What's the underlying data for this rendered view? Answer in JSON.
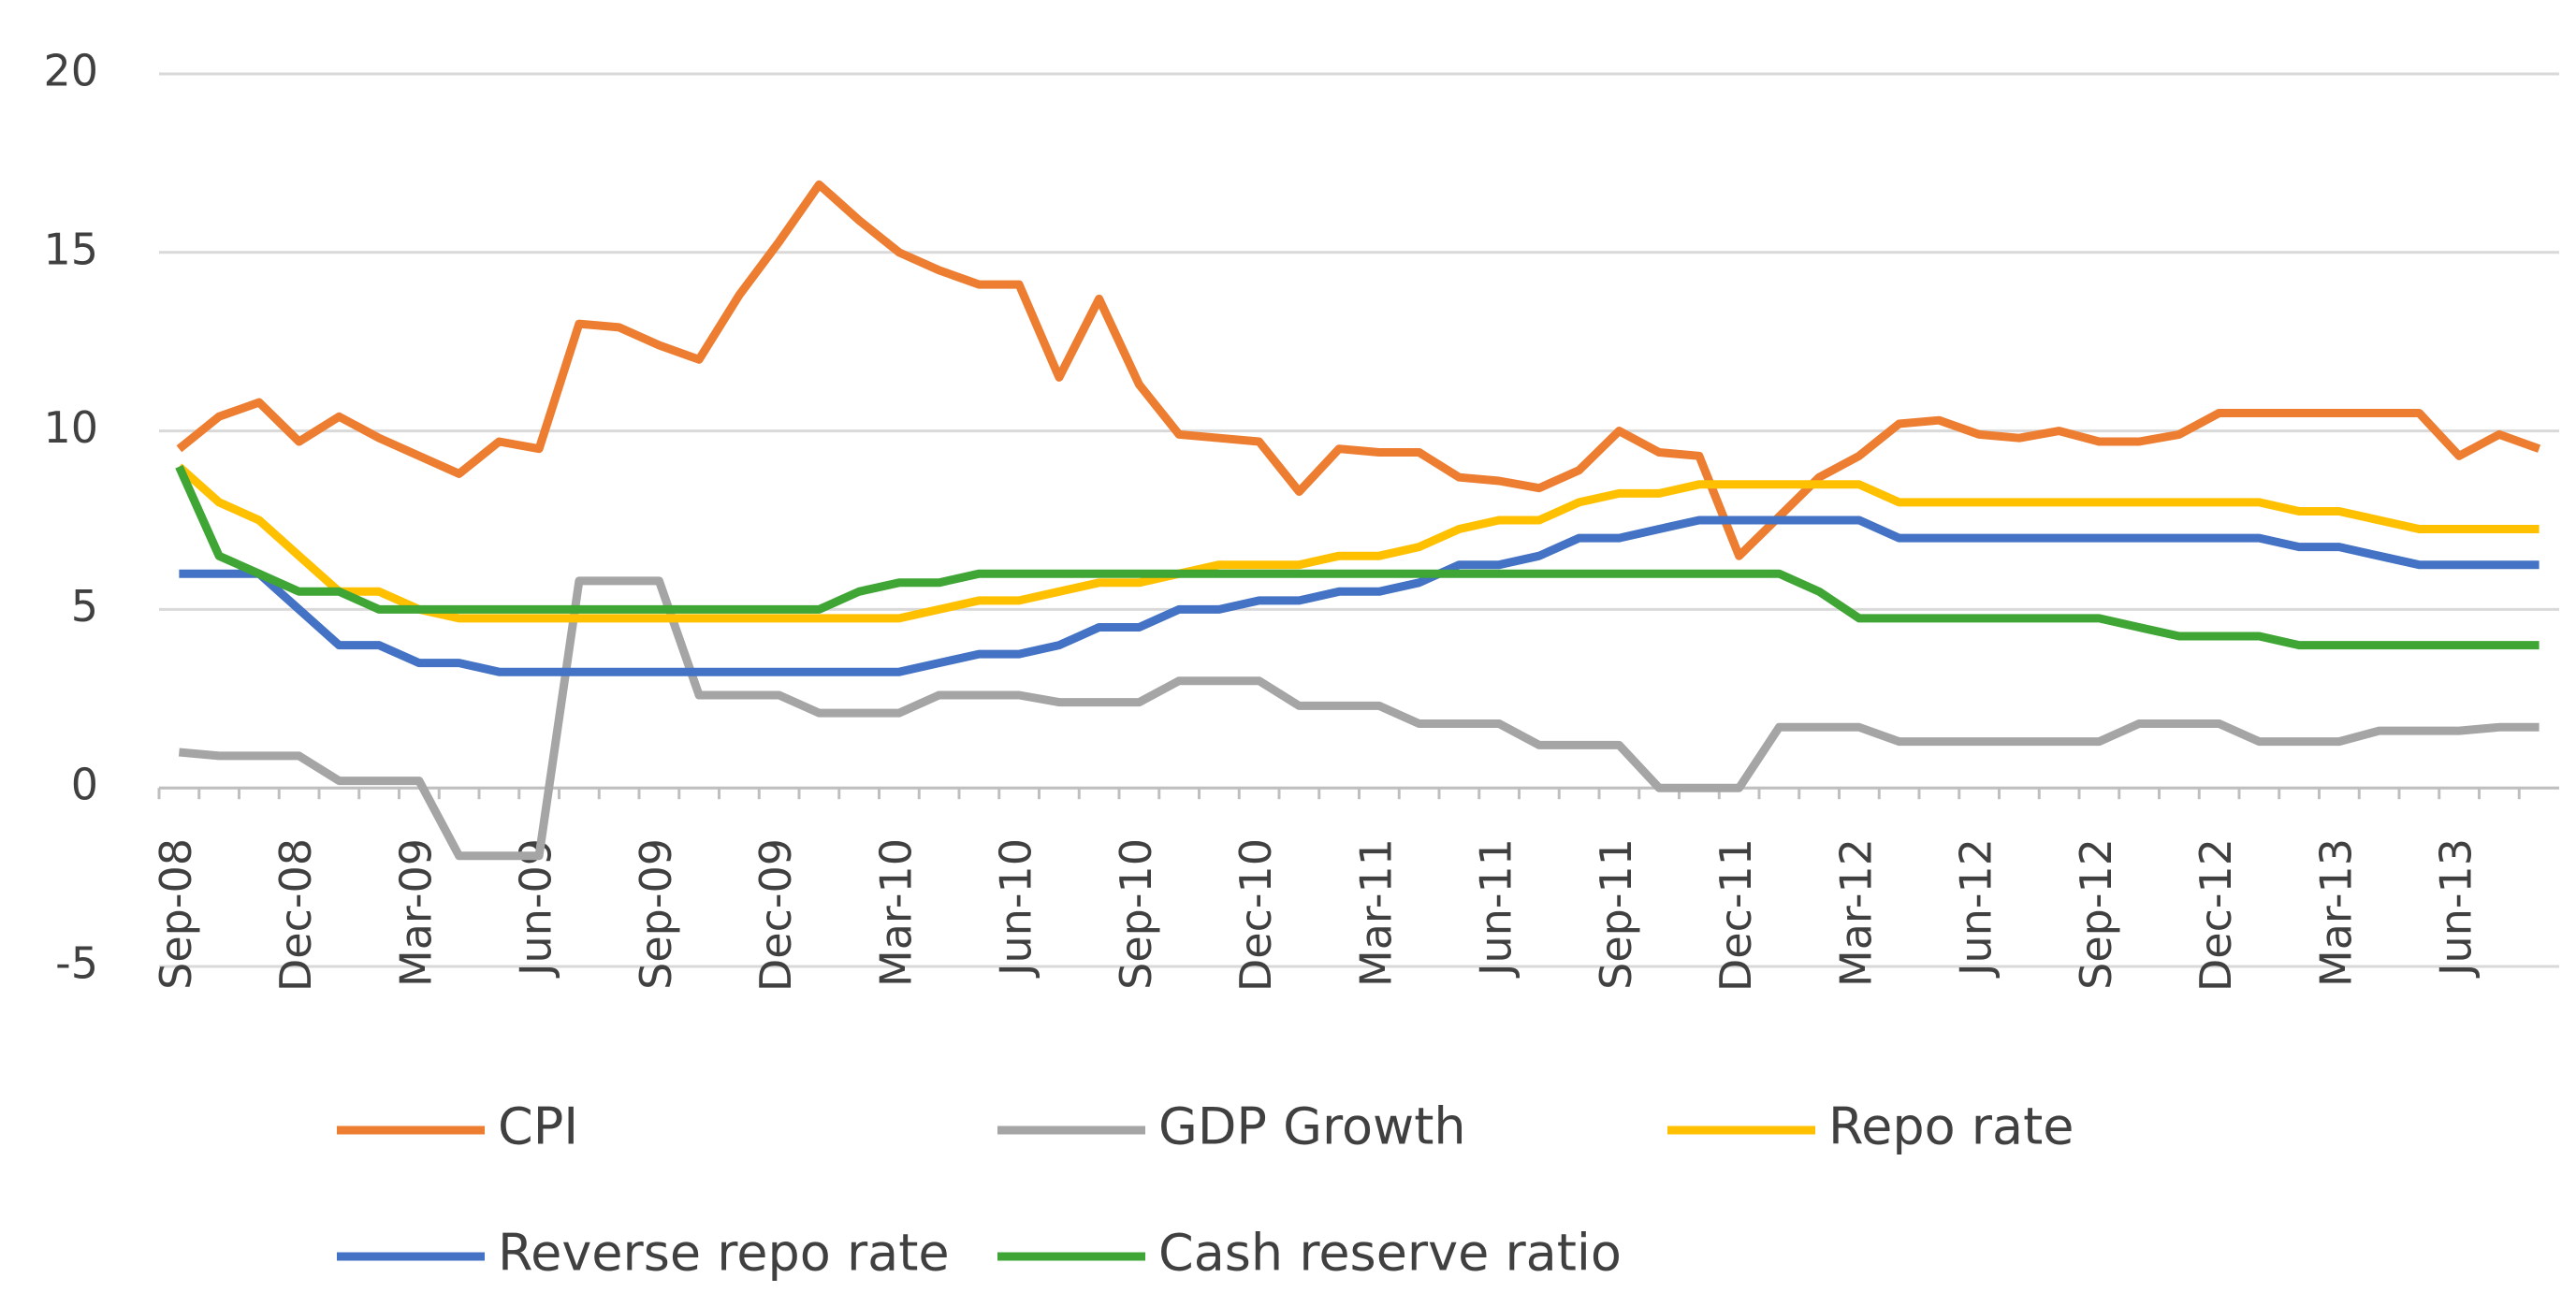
{
  "chart_data": {
    "type": "line",
    "categories": [
      "Sep-08",
      null,
      null,
      "Dec-08",
      null,
      null,
      "Mar-09",
      null,
      null,
      "Jun-09",
      null,
      null,
      "Sep-09",
      null,
      null,
      "Dec-09",
      null,
      null,
      "Mar-10",
      null,
      null,
      "Jun-10",
      null,
      null,
      "Sep-10",
      null,
      null,
      "Dec-10",
      null,
      null,
      "Mar-11",
      null,
      null,
      "Jun-11",
      null,
      null,
      "Sep-11",
      null,
      null,
      "Dec-11",
      null,
      null,
      "Mar-12",
      null,
      null,
      "Jun-12",
      null,
      null,
      "Sep-12",
      null,
      null,
      "Dec-12",
      null,
      null,
      "Mar-13",
      null,
      null,
      "Jun-13",
      null,
      null
    ],
    "series": [
      {
        "name": "CPI",
        "color": "#ed7d31",
        "values": [
          9.5,
          10.4,
          10.8,
          9.7,
          10.4,
          9.8,
          9.3,
          8.8,
          9.7,
          9.5,
          13.0,
          12.9,
          12.4,
          12.0,
          13.8,
          15.3,
          16.9,
          15.9,
          15.0,
          14.5,
          14.1,
          14.1,
          11.5,
          13.7,
          11.3,
          9.9,
          9.8,
          9.7,
          8.3,
          9.5,
          9.4,
          9.4,
          8.7,
          8.6,
          8.4,
          8.9,
          10.0,
          9.4,
          9.3,
          6.5,
          7.6,
          8.7,
          9.3,
          10.2,
          10.3,
          9.9,
          9.8,
          10.0,
          9.7,
          9.7,
          9.9,
          10.5,
          10.5,
          10.5,
          10.5,
          10.5,
          10.5,
          9.3,
          9.9,
          9.5
        ]
      },
      {
        "name": "GDP Growth",
        "color": "#a5a5a5",
        "values": [
          1.0,
          0.9,
          0.9,
          0.9,
          0.2,
          0.2,
          0.2,
          -1.9,
          -1.9,
          -1.9,
          5.8,
          5.8,
          5.8,
          2.6,
          2.6,
          2.6,
          2.1,
          2.1,
          2.1,
          2.6,
          2.6,
          2.6,
          2.4,
          2.4,
          2.4,
          3.0,
          3.0,
          3.0,
          2.3,
          2.3,
          2.3,
          1.8,
          1.8,
          1.8,
          1.2,
          1.2,
          1.2,
          0,
          0,
          0,
          1.7,
          1.7,
          1.7,
          1.3,
          1.3,
          1.3,
          1.3,
          1.3,
          1.3,
          1.8,
          1.8,
          1.8,
          1.3,
          1.3,
          1.3,
          1.6,
          1.6,
          1.6,
          1.7,
          1.7
        ]
      },
      {
        "name": "Repo rate",
        "color": "#ffc000",
        "values": [
          9.0,
          8.0,
          7.5,
          6.5,
          5.5,
          5.5,
          5.0,
          4.75,
          4.75,
          4.75,
          4.75,
          4.75,
          4.75,
          4.75,
          4.75,
          4.75,
          4.75,
          4.75,
          4.75,
          5.0,
          5.25,
          5.25,
          5.5,
          5.75,
          5.75,
          6.0,
          6.25,
          6.25,
          6.25,
          6.5,
          6.5,
          6.75,
          7.25,
          7.5,
          7.5,
          8.0,
          8.25,
          8.25,
          8.5,
          8.5,
          8.5,
          8.5,
          8.5,
          8.0,
          8.0,
          8.0,
          8.0,
          8.0,
          8.0,
          8.0,
          8.0,
          8.0,
          8.0,
          7.75,
          7.75,
          7.5,
          7.25,
          7.25,
          7.25,
          7.25
        ]
      },
      {
        "name": "Reverse repo rate",
        "color": "#4472c4",
        "values": [
          6.0,
          6.0,
          6.0,
          5.0,
          4.0,
          4.0,
          3.5,
          3.5,
          3.25,
          3.25,
          3.25,
          3.25,
          3.25,
          3.25,
          3.25,
          3.25,
          3.25,
          3.25,
          3.25,
          3.5,
          3.75,
          3.75,
          4.0,
          4.5,
          4.5,
          5.0,
          5.0,
          5.25,
          5.25,
          5.5,
          5.5,
          5.75,
          6.25,
          6.25,
          6.5,
          7.0,
          7.0,
          7.25,
          7.5,
          7.5,
          7.5,
          7.5,
          7.5,
          7.0,
          7.0,
          7.0,
          7.0,
          7.0,
          7.0,
          7.0,
          7.0,
          7.0,
          7.0,
          6.75,
          6.75,
          6.5,
          6.25,
          6.25,
          6.25,
          6.25
        ]
      },
      {
        "name": "Cash reserve ratio",
        "color": "#3fa535",
        "values": [
          9.0,
          6.5,
          6.0,
          5.5,
          5.5,
          5.0,
          5.0,
          5.0,
          5.0,
          5.0,
          5.0,
          5.0,
          5.0,
          5.0,
          5.0,
          5.0,
          5.0,
          5.5,
          5.75,
          5.75,
          6.0,
          6.0,
          6.0,
          6.0,
          6.0,
          6.0,
          6.0,
          6.0,
          6.0,
          6.0,
          6.0,
          6.0,
          6.0,
          6.0,
          6.0,
          6.0,
          6.0,
          6.0,
          6.0,
          6.0,
          6.0,
          5.5,
          4.75,
          4.75,
          4.75,
          4.75,
          4.75,
          4.75,
          4.75,
          4.5,
          4.25,
          4.25,
          4.25,
          4.0,
          4.0,
          4.0,
          4.0,
          4.0,
          4.0,
          4.0
        ]
      }
    ],
    "ylim": [
      -5,
      20
    ],
    "yticks": [
      -5,
      0,
      5,
      10,
      15,
      20
    ],
    "grid": true,
    "legend": "bottom"
  }
}
